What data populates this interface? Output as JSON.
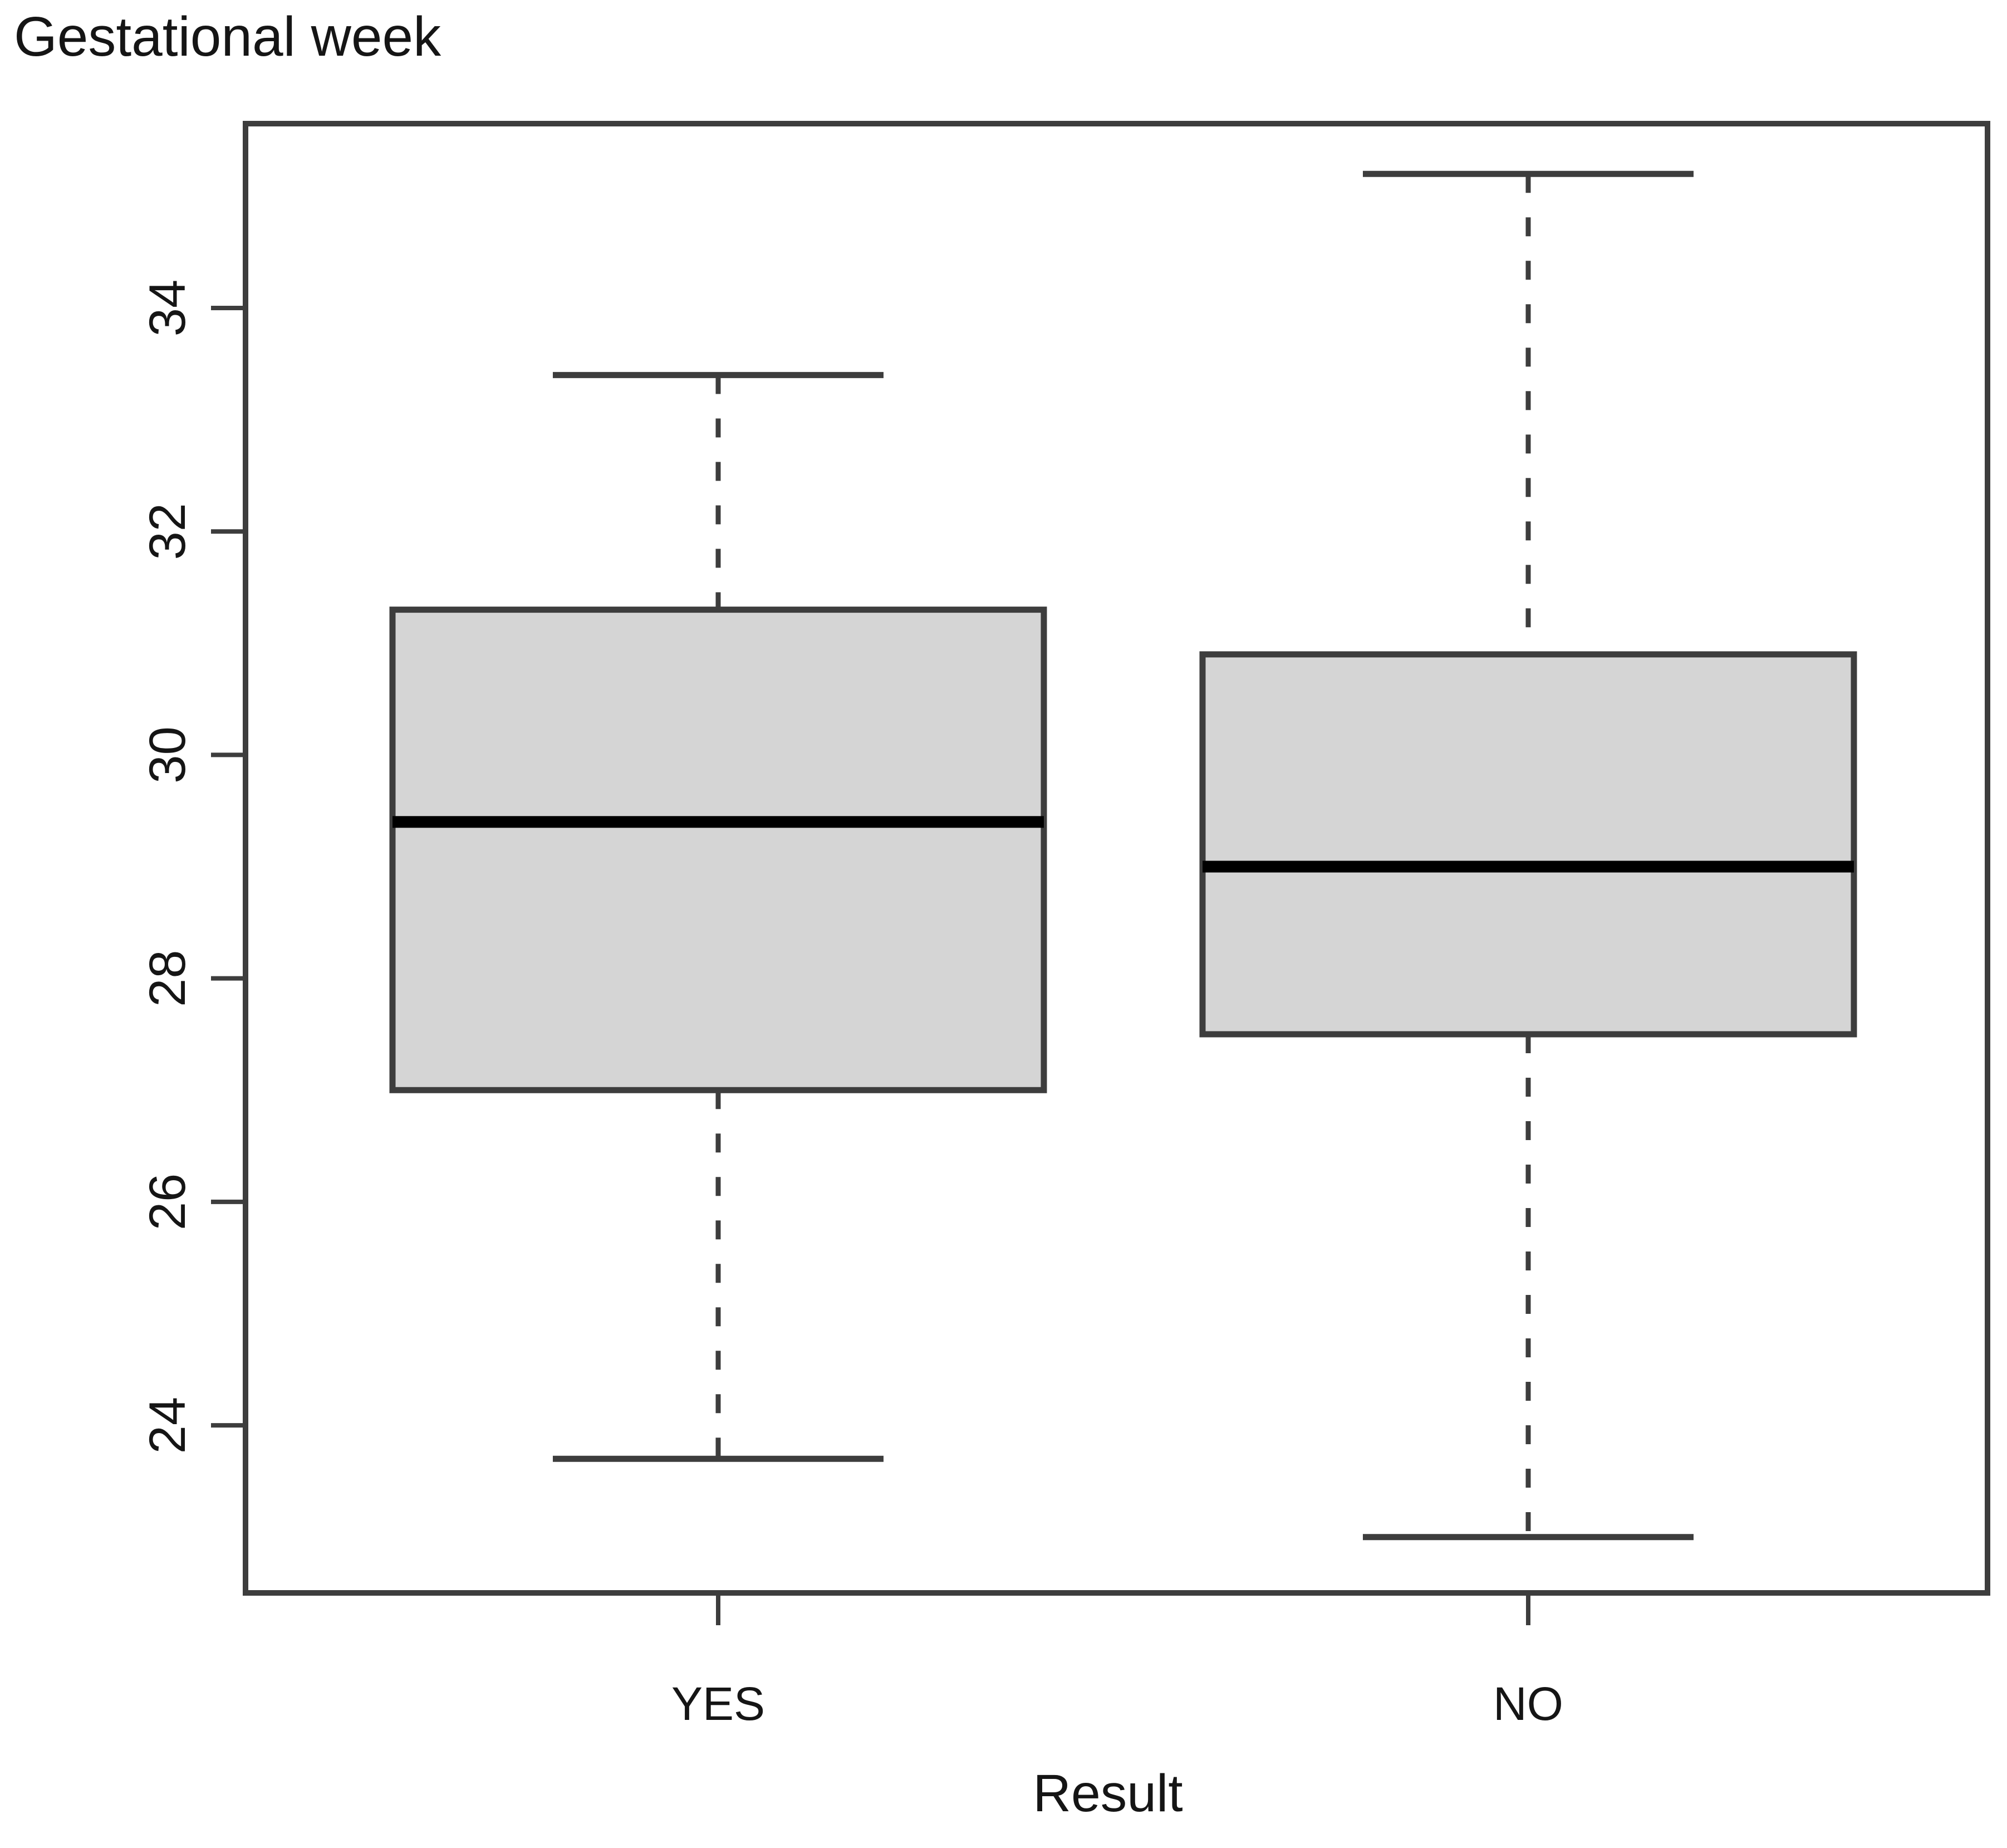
{
  "chart_data": {
    "type": "boxplot",
    "title": "Gestational week",
    "xlabel": "Result",
    "ylabel": "",
    "categories": [
      "YES",
      "NO"
    ],
    "yticks": [
      24,
      26,
      28,
      30,
      32,
      34
    ],
    "ylim": [
      22.5,
      35.65
    ],
    "grid": false,
    "legend": "none",
    "series": [
      {
        "label": "YES",
        "whisker_low": 23.7,
        "q1": 27.0,
        "median": 29.4,
        "q3": 31.3,
        "whisker_high": 33.4
      },
      {
        "label": "NO",
        "whisker_low": 23.0,
        "q1": 27.5,
        "median": 29.0,
        "q3": 30.9,
        "whisker_high": 35.2
      }
    ],
    "style": {
      "box_fill": "#d5d5d5",
      "line_color": "#3d3d3d",
      "median_color": "#000000",
      "text_color": "#151515",
      "background": "#ffffff"
    }
  }
}
